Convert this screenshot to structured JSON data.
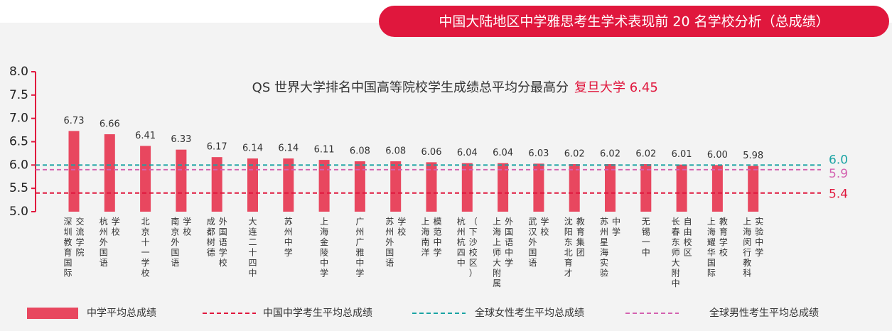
{
  "chart_data": {
    "type": "bar",
    "title": "中国大陆地区中学雅思考生学术表现前 20 名学校分析（总成绩）",
    "annotation": {
      "text": "QS 世界大学排名中国高等院校学生成绩总平均分最高分",
      "highlight": "复旦大学 6.45"
    },
    "categories": [
      [
        "深圳教育国际",
        "交流学院"
      ],
      [
        "杭州外国语",
        "学校"
      ],
      [
        "北京十一学校"
      ],
      [
        "南京外国语",
        "学校"
      ],
      [
        "成都树德",
        "外国语学校"
      ],
      [
        "大连二十四中"
      ],
      [
        "苏州中学"
      ],
      [
        "上海金陵中学"
      ],
      [
        "广州广雅中学"
      ],
      [
        "苏州外国语",
        "学校"
      ],
      [
        "上海南洋",
        "模范中学"
      ],
      [
        "杭州杭四中",
        "（下沙校区）"
      ],
      [
        "上海上师大附属",
        "外国语中学"
      ],
      [
        "武汉外国语",
        "学校"
      ],
      [
        "沈阳东北育才",
        "教育集团"
      ],
      [
        "苏州星海实验",
        "中学"
      ],
      [
        "无锡一中"
      ],
      [
        "长春东师大附中",
        "自由校区"
      ],
      [
        "上海耀华国际",
        "教育学校"
      ],
      [
        "上海闵行教科",
        "实验中学"
      ]
    ],
    "series": [
      {
        "name": "中学平均总成绩",
        "color": "#e8475f",
        "values": [
          6.73,
          6.66,
          6.41,
          6.33,
          6.17,
          6.14,
          6.14,
          6.11,
          6.08,
          6.08,
          6.06,
          6.04,
          6.04,
          6.03,
          6.02,
          6.02,
          6.02,
          6.01,
          6.0,
          5.98
        ],
        "value_labels": [
          "6.73",
          "6.66",
          "6.41",
          "6.33",
          "6.17",
          "6.14",
          "6.14",
          "6.11",
          "6.08",
          "6.08",
          "6.06",
          "6.04",
          "6.04",
          "6.03",
          "6.02",
          "6.02",
          "6.02",
          "6.01",
          "6.00",
          "5.98"
        ]
      }
    ],
    "reference_lines": [
      {
        "name": "中国中学考生平均总成绩",
        "value": 5.4,
        "label": "5.4",
        "color": "#e0173d"
      },
      {
        "name": "全球女性考生平均总成绩",
        "value": 6.0,
        "label": "6.0",
        "color": "#1aa3a3"
      },
      {
        "name": "全球男性考生平均总成绩",
        "value": 5.9,
        "label": "5.9",
        "color": "#d462b0"
      }
    ],
    "ylim": [
      5,
      8
    ],
    "yticks": [
      {
        "value": 5,
        "label": "5.0"
      },
      5.5,
      {
        "value": 6,
        "label": "6.0"
      },
      6.5,
      {
        "value": 7,
        "label": "7.0"
      },
      7.5,
      {
        "value": 8,
        "label": "8.0"
      }
    ]
  }
}
